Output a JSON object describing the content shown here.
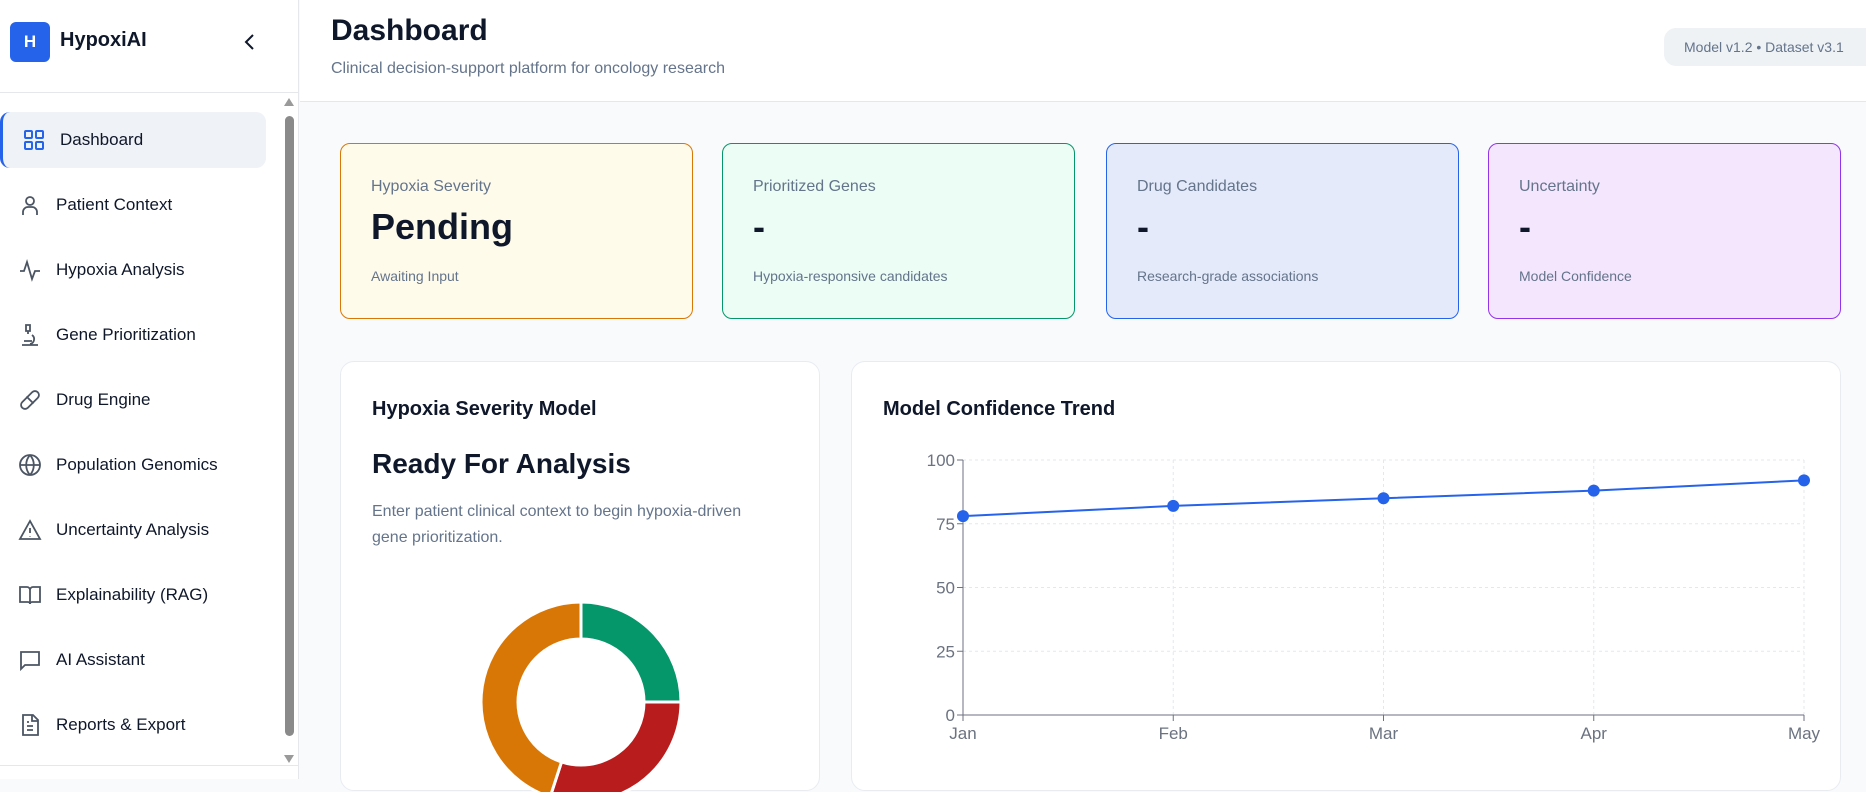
{
  "sidebar": {
    "logo_letter": "H",
    "brand": "HypoxiAI",
    "items": [
      {
        "label": "Dashboard",
        "icon": "grid-icon",
        "active": true
      },
      {
        "label": "Patient Context",
        "icon": "user-icon"
      },
      {
        "label": "Hypoxia Analysis",
        "icon": "activity-icon"
      },
      {
        "label": "Gene Prioritization",
        "icon": "microscope-icon"
      },
      {
        "label": "Drug Engine",
        "icon": "pill-icon"
      },
      {
        "label": "Population Genomics",
        "icon": "globe-icon"
      },
      {
        "label": "Uncertainty Analysis",
        "icon": "warning-icon"
      },
      {
        "label": "Explainability (RAG)",
        "icon": "book-icon"
      },
      {
        "label": "AI Assistant",
        "icon": "message-icon"
      },
      {
        "label": "Reports & Export",
        "icon": "file-icon"
      }
    ]
  },
  "header": {
    "title": "Dashboard",
    "subtitle": "Clinical decision-support platform for oncology research",
    "badge": "Model v1.2 • Dataset v3.1"
  },
  "cards": [
    {
      "label": "Hypoxia Severity",
      "value": "Pending",
      "sub": "Awaiting Input",
      "bg": "#fefbeb",
      "border": "#d97706"
    },
    {
      "label": "Prioritized Genes",
      "value": "-",
      "sub": "Hypoxia-responsive candidates",
      "bg": "#ecfdf5",
      "border": "#059669"
    },
    {
      "label": "Drug Candidates",
      "value": "-",
      "sub": "Research-grade associations",
      "bg": "#e4eafa",
      "border": "#2563eb"
    },
    {
      "label": "Uncertainty",
      "value": "-",
      "sub": "Model Confidence",
      "bg": "#f3e6fd",
      "border": "#9333ea"
    }
  ],
  "severity_panel": {
    "title": "Hypoxia Severity Model",
    "status": "Ready For Analysis",
    "description": "Enter patient clinical context to begin hypoxia-driven gene prioritization.",
    "donut": {
      "type": "pie",
      "values": [
        25,
        30,
        45
      ],
      "colors": [
        "#059669",
        "#b91c1c",
        "#d97706"
      ]
    }
  },
  "chart_data": {
    "type": "line",
    "title": "Model Confidence Trend",
    "categories": [
      "Jan",
      "Feb",
      "Mar",
      "Apr",
      "May"
    ],
    "values": [
      78,
      82,
      85,
      88,
      92
    ],
    "ylim": [
      0,
      100
    ],
    "yticks": [
      0,
      25,
      50,
      75,
      100
    ],
    "grid": true,
    "color": "#2563eb"
  }
}
